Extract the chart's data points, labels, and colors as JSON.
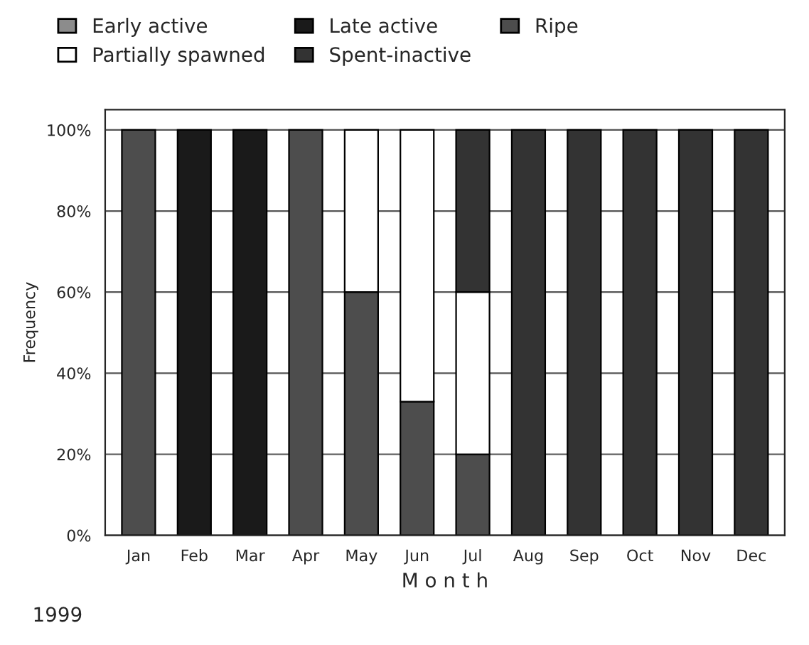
{
  "chart_data": {
    "type": "bar",
    "stacked": true,
    "xlabel": "M o n t h",
    "ylabel": "Frequency",
    "categories": [
      "Jan",
      "Feb",
      "Mar",
      "Apr",
      "May",
      "Jun",
      "Jul",
      "Aug",
      "Sep",
      "Oct",
      "Nov",
      "Dec"
    ],
    "series": [
      {
        "name": "Early active",
        "color": "#8c8c8c",
        "values": [
          0,
          0,
          0,
          0,
          0,
          0,
          0,
          0,
          0,
          0,
          0,
          0
        ]
      },
      {
        "name": "Late active",
        "color": "#1a1a1a",
        "values": [
          0,
          100,
          100,
          0,
          0,
          0,
          0,
          0,
          0,
          0,
          0,
          0
        ]
      },
      {
        "name": "Ripe",
        "color": "#4d4d4d",
        "values": [
          100,
          0,
          0,
          100,
          60,
          33,
          20,
          0,
          0,
          0,
          0,
          0
        ]
      },
      {
        "name": "Partially spawned",
        "color": "#ffffff",
        "values": [
          0,
          0,
          0,
          0,
          40,
          67,
          40,
          0,
          0,
          0,
          0,
          0
        ]
      },
      {
        "name": "Spent-inactive",
        "color": "#333333",
        "values": [
          0,
          0,
          0,
          0,
          0,
          0,
          40,
          100,
          100,
          100,
          100,
          100
        ]
      }
    ],
    "ylim": [
      0,
      105
    ],
    "yticks": [
      {
        "value": 0,
        "label": "0%"
      },
      {
        "value": 20,
        "label": "20%"
      },
      {
        "value": 40,
        "label": "40%"
      },
      {
        "value": 60,
        "label": "60%"
      },
      {
        "value": 80,
        "label": "80%"
      },
      {
        "value": 100,
        "label": "100%"
      }
    ],
    "grid": "y",
    "legend": "top",
    "annotations": [
      "1999"
    ]
  }
}
